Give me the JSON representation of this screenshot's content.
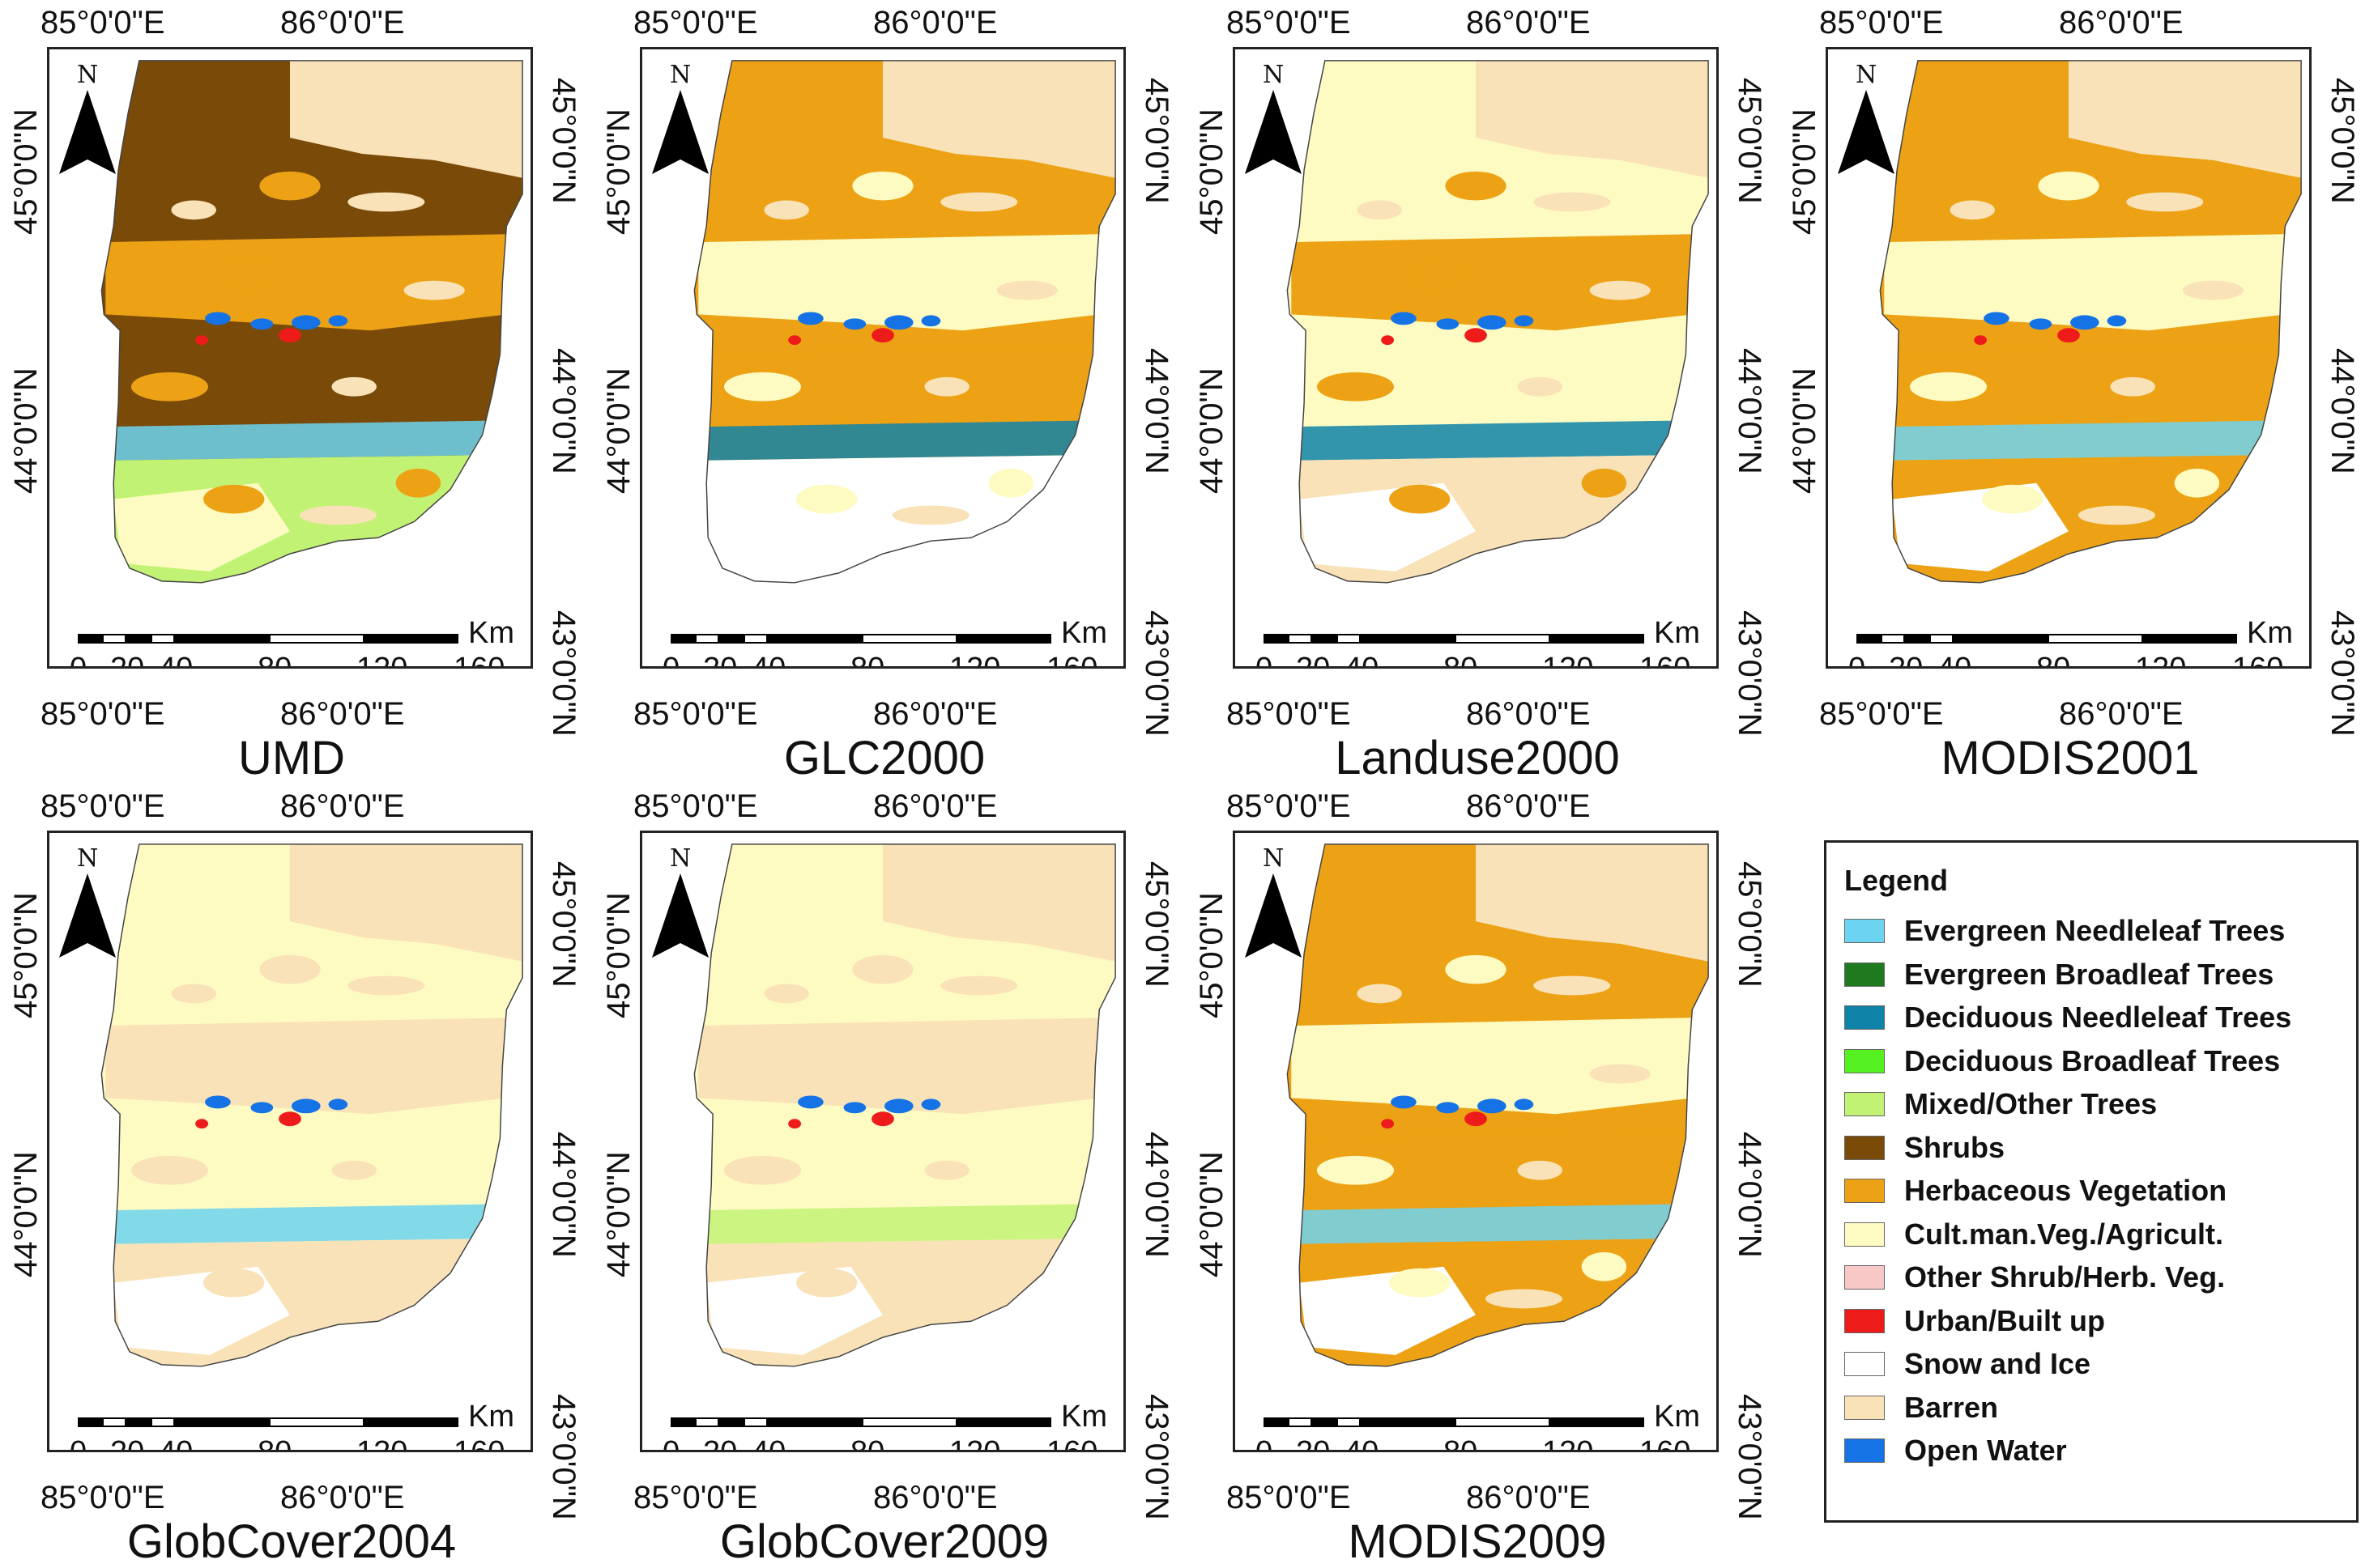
{
  "panels": [
    {
      "title": "UMD",
      "scale_visible": true,
      "classes": {
        "base": "Shrubs",
        "a": "Herbaceous Vegetation",
        "b": "Barren",
        "c": "Cult.man.Veg./Agricult.",
        "south": "Mixed/Other Trees",
        "band": "Evergreen Needleleaf Trees"
      }
    },
    {
      "title": "GLC2000",
      "scale_visible": true,
      "classes": {
        "base": "Herbaceous Vegetation",
        "a": "Cult.man.Veg./Agricult.",
        "b": "Barren",
        "c": "Snow and Ice",
        "south": "Snow and Ice",
        "band": "Deciduous Needleleaf Trees"
      }
    },
    {
      "title": "Landuse2000",
      "scale_visible": true,
      "classes": {
        "base": "Cult.man.Veg./Agricult.",
        "a": "Herbaceous Vegetation",
        "b": "Barren",
        "c": "Snow and Ice",
        "south": "Barren",
        "band": "Deciduous Needleleaf Trees"
      }
    },
    {
      "title": "MODIS2001",
      "scale_visible": true,
      "classes": {
        "base": "Herbaceous Vegetation",
        "a": "Cult.man.Veg./Agricult.",
        "b": "Barren",
        "c": "Snow and Ice",
        "south": "Herbaceous Vegetation",
        "band": "Evergreen Needleleaf Trees"
      }
    },
    {
      "title": "GlobCover2004",
      "scale_visible": true,
      "classes": {
        "base": "Cult.man.Veg./Agricult.",
        "a": "Barren",
        "b": "Barren",
        "c": "Snow and Ice",
        "south": "Barren",
        "band": "Evergreen Needleleaf Trees"
      }
    },
    {
      "title": "GlobCover2009",
      "scale_visible": true,
      "classes": {
        "base": "Cult.man.Veg./Agricult.",
        "a": "Barren",
        "b": "Barren",
        "c": "Snow and Ice",
        "south": "Barren",
        "band": "Mixed/Other Trees"
      }
    },
    {
      "title": "MODIS2009",
      "scale_visible": true,
      "classes": {
        "base": "Herbaceous Vegetation",
        "a": "Cult.man.Veg./Agricult.",
        "b": "Barren",
        "c": "Snow and Ice",
        "south": "Herbaceous Vegetation",
        "band": "Evergreen Needleleaf Trees"
      }
    }
  ],
  "axes": {
    "lon_top": [
      "85°0'0\"E",
      "86°0'0\"E"
    ],
    "lon_bottom": [
      "85°0'0\"E",
      "86°0'0\"E"
    ],
    "lat_left": [
      "45°0'0\"N",
      "44°0'0\"N"
    ],
    "lat_right": [
      "45°0'0\"N",
      "44°0'0\"N",
      "43°0'0\"N"
    ]
  },
  "north_arrow": {
    "label": "N"
  },
  "scale": {
    "unit": "Km",
    "ticks": [
      "0",
      "20",
      "40",
      "80",
      "120",
      "160"
    ]
  },
  "legend": {
    "title": "Legend",
    "items": [
      {
        "label": "Evergreen Needleleaf Trees",
        "color": "#6cd4f0"
      },
      {
        "label": "Evergreen Broadleaf Trees",
        "color": "#1f7a1f"
      },
      {
        "label": "Deciduous Needleleaf Trees",
        "color": "#0f82a8"
      },
      {
        "label": "Deciduous Broadleaf Trees",
        "color": "#55f020"
      },
      {
        "label": "Mixed/Other Trees",
        "color": "#c2f274"
      },
      {
        "label": "Shrubs",
        "color": "#7a4a08"
      },
      {
        "label": "Herbaceous Vegetation",
        "color": "#eda215"
      },
      {
        "label": "Cult.man.Veg./Agricult.",
        "color": "#fefbc2"
      },
      {
        "label": "Other Shrub/Herb. Veg.",
        "color": "#f7c8c6"
      },
      {
        "label": "Urban/Built up",
        "color": "#ee1b1b"
      },
      {
        "label": "Snow and Ice",
        "color": "#ffffff"
      },
      {
        "label": "Barren",
        "color": "#f9e2b8"
      },
      {
        "label": "Open Water",
        "color": "#1673e6"
      }
    ]
  }
}
